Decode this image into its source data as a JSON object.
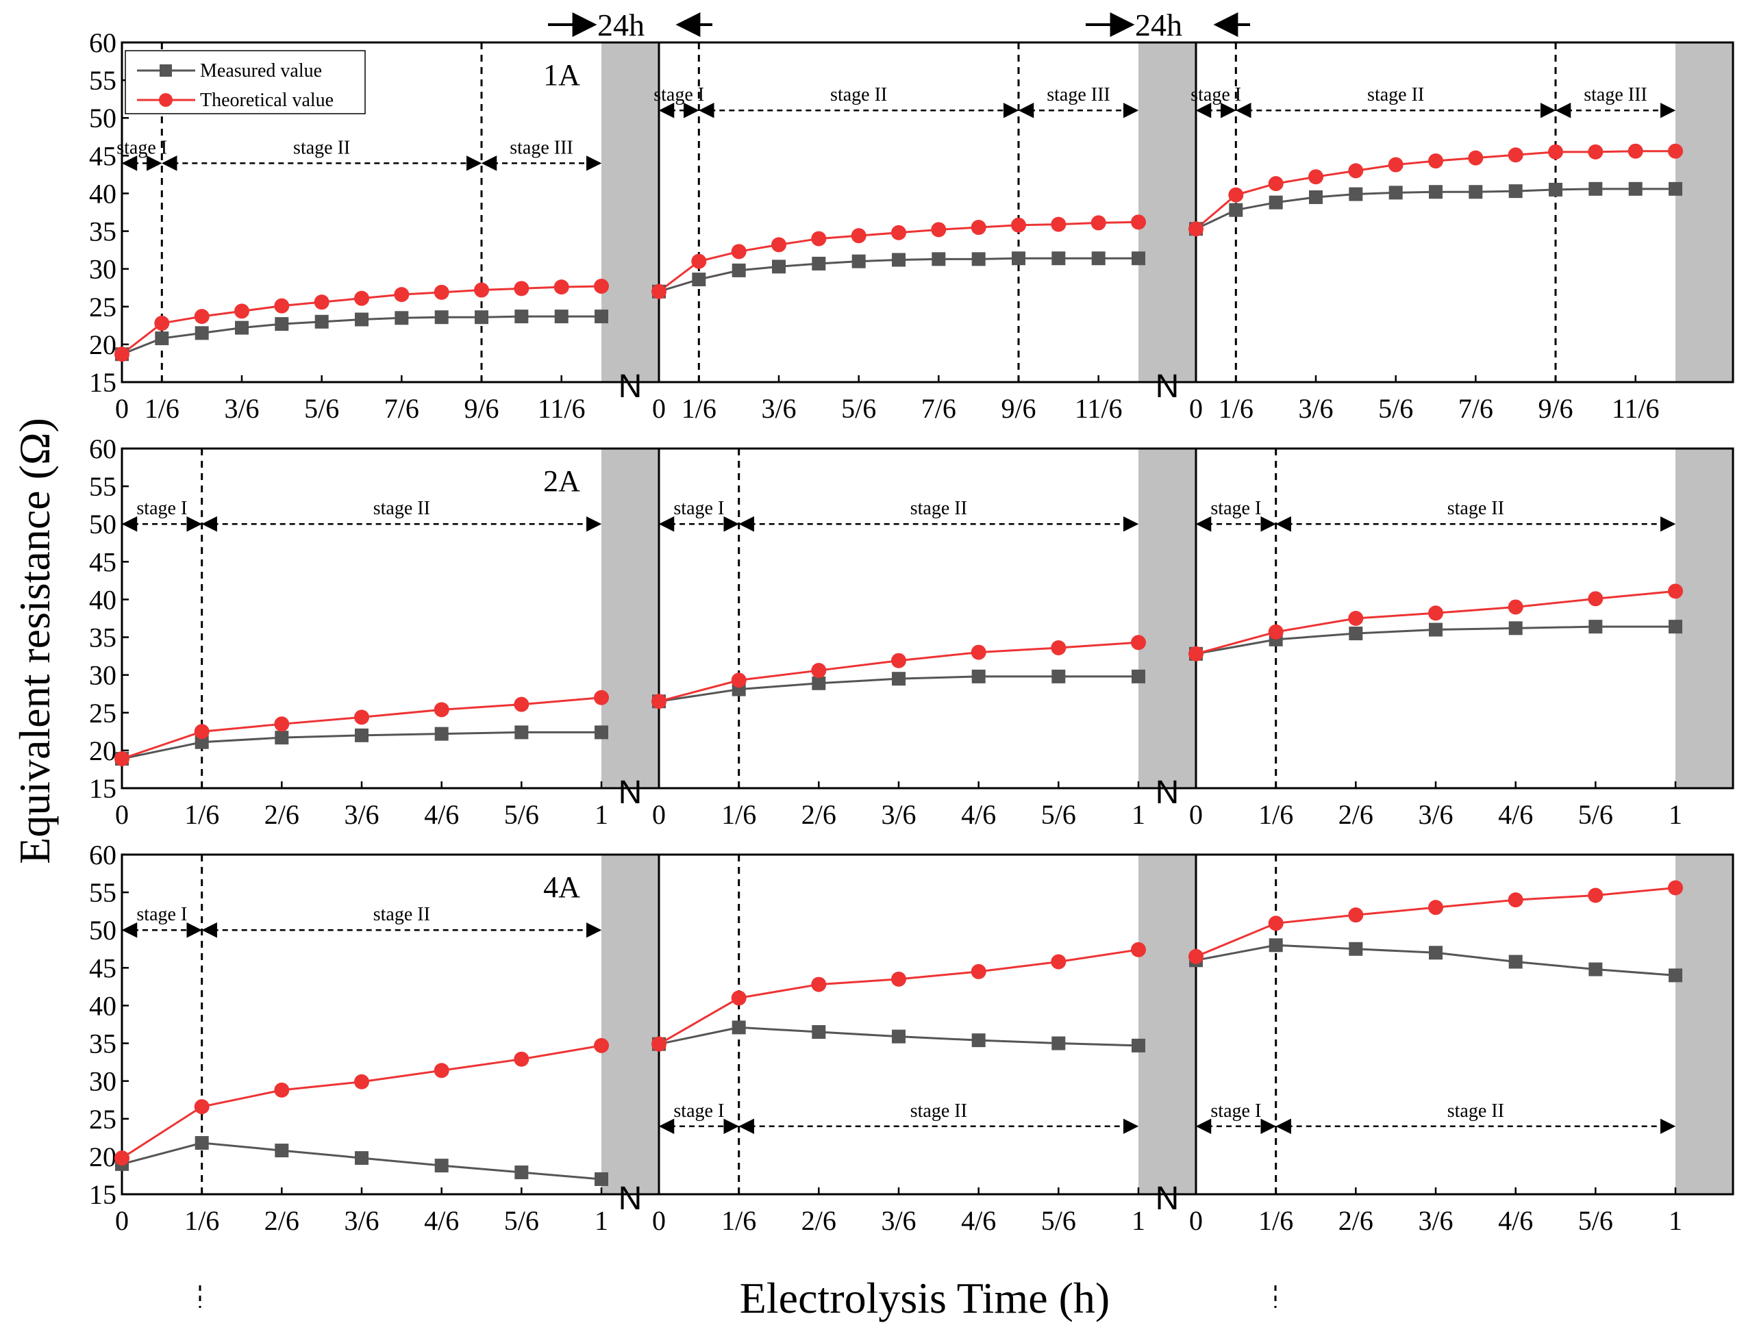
{
  "chart_data": {
    "type": "line",
    "ylabel": "Equivalent resistance (Ω)",
    "xlabel": "Electrolysis Time (h)",
    "ylim": [
      15,
      60
    ],
    "yticks": [
      15,
      20,
      25,
      30,
      35,
      40,
      45,
      50,
      55,
      60
    ],
    "gap_label": "24h",
    "gap_marker": "N",
    "legend": {
      "measured": "Measured value",
      "theoretical": "Theoretical value",
      "position": "top-left"
    },
    "colors": {
      "measured": "#555555",
      "theoretical": "#ee3333",
      "gray_band": "#c0c0c0"
    },
    "rows": [
      {
        "label": "1A",
        "x": [
          0,
          0.0833,
          0.1667,
          0.25,
          0.3333,
          0.4167,
          0.5,
          0.5833,
          0.6667,
          0.75,
          0.8333,
          0.9167,
          1.0
        ],
        "xtick_labels": [
          "0",
          "1/6",
          "3/6",
          "5/6",
          "7/6",
          "9/6",
          "11/6"
        ],
        "xtick_positions": [
          0,
          0.0833,
          0.25,
          0.4167,
          0.5833,
          0.75,
          0.9167
        ],
        "segments": [
          {
            "measured": [
              18.7,
              20.8,
              21.5,
              22.2,
              22.7,
              23.0,
              23.3,
              23.5,
              23.6,
              23.6,
              23.7,
              23.7,
              23.7
            ],
            "theoretical": [
              18.7,
              22.8,
              23.7,
              24.4,
              25.1,
              25.6,
              26.1,
              26.6,
              26.9,
              27.2,
              27.4,
              27.6,
              27.7
            ],
            "stage_lines": [
              0.0833,
              0.75
            ],
            "stage_labels": [
              "stage I",
              "stage II",
              "stage III"
            ],
            "stage_arrow_y": 44
          },
          {
            "measured": [
              27.0,
              28.6,
              29.8,
              30.3,
              30.7,
              31.0,
              31.2,
              31.3,
              31.3,
              31.4,
              31.4,
              31.4,
              31.4
            ],
            "theoretical": [
              27.0,
              31.0,
              32.3,
              33.2,
              34.0,
              34.4,
              34.8,
              35.2,
              35.5,
              35.8,
              35.9,
              36.1,
              36.2
            ],
            "stage_lines": [
              0.0833,
              0.75
            ],
            "stage_labels": [
              "stage I",
              "stage II",
              "stage III"
            ],
            "stage_arrow_y": 51
          },
          {
            "measured": [
              35.3,
              37.8,
              38.8,
              39.5,
              39.9,
              40.1,
              40.2,
              40.2,
              40.3,
              40.5,
              40.6,
              40.6,
              40.6
            ],
            "theoretical": [
              35.3,
              39.8,
              41.3,
              42.2,
              43.0,
              43.8,
              44.3,
              44.7,
              45.1,
              45.5,
              45.5,
              45.6,
              45.6
            ],
            "stage_lines": [
              0.0833,
              0.75
            ],
            "stage_labels": [
              "stage I",
              "stage II",
              "stage III"
            ],
            "stage_arrow_y": 51
          }
        ]
      },
      {
        "label": "2A",
        "x": [
          0,
          0.1667,
          0.3333,
          0.5,
          0.6667,
          0.8333,
          1.0
        ],
        "xtick_labels": [
          "0",
          "1/6",
          "2/6",
          "3/6",
          "4/6",
          "5/6",
          "1"
        ],
        "xtick_positions": [
          0,
          0.1667,
          0.3333,
          0.5,
          0.6667,
          0.8333,
          1.0
        ],
        "segments": [
          {
            "measured": [
              18.9,
              21.1,
              21.7,
              22.0,
              22.2,
              22.4,
              22.4
            ],
            "theoretical": [
              18.9,
              22.5,
              23.5,
              24.4,
              25.4,
              26.1,
              27.0
            ],
            "stage_lines": [
              0.1667
            ],
            "stage_labels": [
              "stage I",
              "stage II"
            ],
            "stage_arrow_y": 50
          },
          {
            "measured": [
              26.5,
              28.1,
              28.9,
              29.5,
              29.8,
              29.8,
              29.8
            ],
            "theoretical": [
              26.5,
              29.3,
              30.6,
              31.9,
              33.0,
              33.6,
              34.3
            ],
            "stage_lines": [
              0.1667
            ],
            "stage_labels": [
              "stage I",
              "stage II"
            ],
            "stage_arrow_y": 50
          },
          {
            "measured": [
              32.8,
              34.7,
              35.5,
              36.0,
              36.2,
              36.4,
              36.4
            ],
            "theoretical": [
              32.8,
              35.7,
              37.5,
              38.2,
              39.0,
              40.1,
              41.1
            ],
            "stage_lines": [
              0.1667
            ],
            "stage_labels": [
              "stage I",
              "stage II"
            ],
            "stage_arrow_y": 50
          }
        ]
      },
      {
        "label": "4A",
        "x": [
          0,
          0.1667,
          0.3333,
          0.5,
          0.6667,
          0.8333,
          1.0
        ],
        "xtick_labels": [
          "0",
          "1/6",
          "2/6",
          "3/6",
          "4/6",
          "5/6",
          "1"
        ],
        "xtick_positions": [
          0,
          0.1667,
          0.3333,
          0.5,
          0.6667,
          0.8333,
          1.0
        ],
        "segments": [
          {
            "measured": [
              19.0,
              21.8,
              20.8,
              19.8,
              18.8,
              17.9,
              17.0
            ],
            "theoretical": [
              19.8,
              26.6,
              28.8,
              29.9,
              31.4,
              32.9,
              34.7
            ],
            "stage_lines": [
              0.1667
            ],
            "stage_labels": [
              "stage I",
              "stage II"
            ],
            "stage_arrow_y": 50
          },
          {
            "measured": [
              34.9,
              37.1,
              36.5,
              35.9,
              35.4,
              35.0,
              34.7
            ],
            "theoretical": [
              34.9,
              41.0,
              42.8,
              43.5,
              44.5,
              45.8,
              47.4
            ],
            "stage_lines": [
              0.1667
            ],
            "stage_labels": [
              "stage I",
              "stage II"
            ],
            "stage_arrow_y": 24
          },
          {
            "measured": [
              46.0,
              48.0,
              47.5,
              47.0,
              45.8,
              44.8,
              44.0
            ],
            "theoretical": [
              46.5,
              50.9,
              52.0,
              53.0,
              54.0,
              54.6,
              55.6
            ],
            "stage_lines": [
              0.1667
            ],
            "stage_labels": [
              "stage I",
              "stage II"
            ],
            "stage_arrow_y": 24
          }
        ]
      }
    ]
  }
}
